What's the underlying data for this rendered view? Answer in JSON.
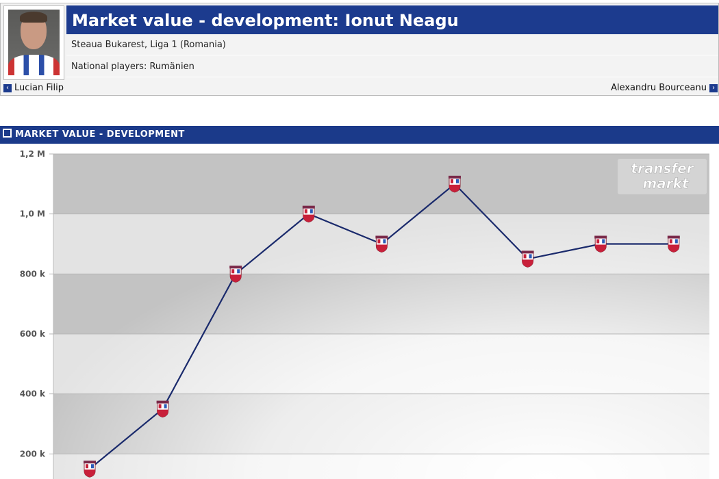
{
  "header": {
    "title": "Market value - development: Ionut Neagu",
    "club_line": "Steaua Bukarest, Liga 1 (Romania)",
    "national_line": "National players: Rumänien",
    "prev_player": "Lucian Filip",
    "next_player": "Alexandru Bourceanu"
  },
  "section": {
    "title": "MARKET VALUE - DEVELOPMENT"
  },
  "watermark": {
    "line1": "transfer",
    "line2": "markt"
  },
  "colors": {
    "brand_blue": "#1c3b8e",
    "line": "#1a2a6c"
  },
  "chart_data": {
    "type": "line",
    "title": "",
    "xlabel": "",
    "ylabel": "Market value",
    "ylim": [
      0,
      1200000
    ],
    "y_ticks": [
      "200 k",
      "400 k",
      "600 k",
      "800 k",
      "1,0 M",
      "1,2 M"
    ],
    "y_tick_values": [
      200000,
      400000,
      600000,
      800000,
      1000000,
      1200000
    ],
    "series": [
      {
        "name": "Market value",
        "values": [
          150000,
          350000,
          800000,
          1000000,
          900000,
          1100000,
          850000,
          900000,
          900000
        ]
      }
    ],
    "marker": "club-crest"
  }
}
